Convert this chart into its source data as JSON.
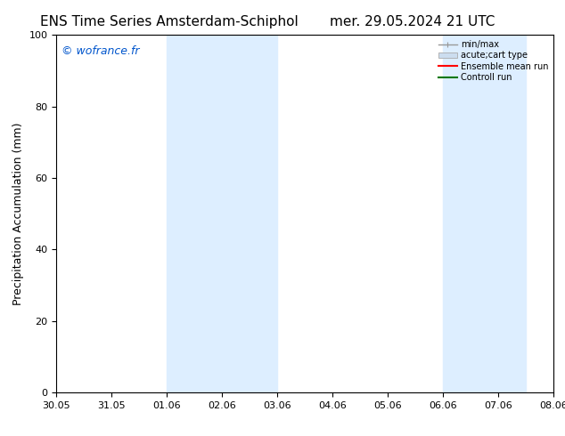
{
  "title_left": "ENS Time Series Amsterdam-Schiphol",
  "title_right": "mer. 29.05.2024 21 UTC",
  "ylabel": "Precipitation Accumulation (mm)",
  "ylim": [
    0,
    100
  ],
  "yticks": [
    0,
    20,
    40,
    60,
    80,
    100
  ],
  "x_start": 0.0,
  "x_end": 9.0,
  "x_tick_labels": [
    "30.05",
    "31.05",
    "01.06",
    "02.06",
    "03.06",
    "04.06",
    "05.06",
    "06.06",
    "07.06",
    "08.06"
  ],
  "x_tick_positions": [
    0,
    1,
    2,
    3,
    4,
    5,
    6,
    7,
    8,
    9
  ],
  "shade_regions": [
    {
      "x_start": 2.0,
      "x_end": 4.0
    },
    {
      "x_start": 7.0,
      "x_end": 8.5
    }
  ],
  "shade_color": "#ddeeff",
  "watermark_text": "© wofrance.fr",
  "watermark_color": "#0055cc",
  "legend_labels": [
    "min/max",
    "acute;cart type",
    "Ensemble mean run",
    "Controll run"
  ],
  "legend_colors": [
    "#aaaaaa",
    "#cccccc",
    "#ff0000",
    "#007700"
  ],
  "bg_color": "#ffffff",
  "title_fontsize": 11,
  "axis_label_fontsize": 9,
  "tick_fontsize": 8,
  "watermark_fontsize": 9,
  "legend_fontsize": 7
}
